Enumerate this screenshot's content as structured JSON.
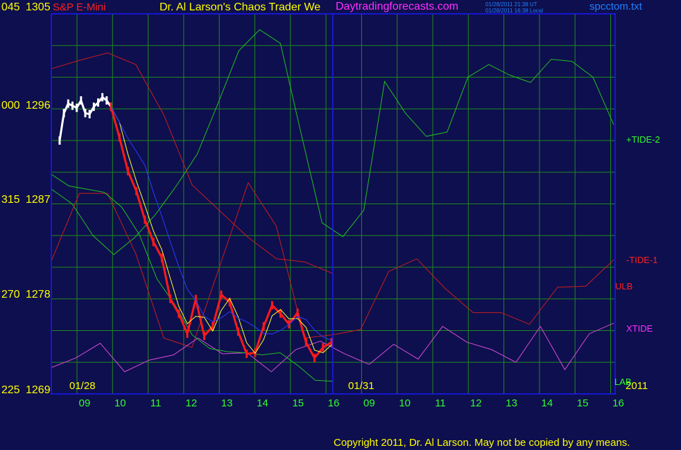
{
  "colors": {
    "background": "#0e0f4e",
    "frame": "#1a1aff",
    "grid": "#1f8a1f",
    "price_up": "#ffffff",
    "price_down": "#ff1a1a",
    "tide2": "#22c022",
    "tide1": "#c81e1e",
    "xtide": "#d84cd8",
    "ma_fast": "#ffff30",
    "ma_slow": "#2a3cff",
    "label_white": "#ffffff",
    "label_red": "#ff2020",
    "label_green": "#30ff30",
    "label_yellow": "#ffff00",
    "label_magenta": "#ff30ff",
    "label_blue": "#2080ff"
  },
  "header": {
    "scale_top_left": "045",
    "price_top": "1305",
    "instrument": "S&P E-Mini",
    "title": "Dr. Al Larson's Chaos Trader We",
    "site": "Daytradingforecasts.com",
    "stamp_ut": "01/28/2011 21:38 UT",
    "stamp_local": "01/28/2011 16:38 Local",
    "filename": "spcctom.txt"
  },
  "footer": {
    "copyright": "Copyright 2011, Dr. Al Larson. May not be copied by any means."
  },
  "chart_data": {
    "type": "line",
    "title": "S&P E-Mini",
    "ylim": [
      1269,
      1305
    ],
    "y_ticks": [
      {
        "value": 1305,
        "left": "045",
        "right": "1305"
      },
      {
        "value": 1296,
        "left": "000",
        "right": "1296"
      },
      {
        "value": 1287,
        "left": "315",
        "right": "1287"
      },
      {
        "value": 1278,
        "left": "270",
        "right": "1278"
      },
      {
        "value": 1269,
        "left": "225",
        "right": "1269"
      }
    ],
    "x_ticks": [
      "09",
      "10",
      "11",
      "12",
      "13",
      "14",
      "15",
      "16",
      "09",
      "10",
      "11",
      "12",
      "13",
      "14",
      "15",
      "16"
    ],
    "date_labels": [
      "01/28",
      "01/31",
      "2011"
    ],
    "series": [
      {
        "name": "+TIDE-2",
        "values": [
          1288.4,
          1287.0,
          1284.0,
          1282.2,
          1283.8,
          1286.0,
          1288.7,
          1291.7,
          1296.5,
          1301.5,
          1303.5,
          1302.2,
          1293.6,
          1285.2,
          1283.9,
          1286.4,
          1298.6,
          1295.6,
          1293.4,
          1293.8,
          1299.0,
          1300.2,
          1299.2,
          1298.5,
          1300.7,
          1300.5,
          1299.0,
          1294.5
        ]
      },
      {
        "name": "-TIDE-1",
        "values": [
          1281.6,
          1288.0,
          1288.0,
          1282.3,
          1274.3,
          1273.4,
          1281.2,
          1289.0,
          1284.9,
          1274.3,
          1274.6,
          1275.1,
          1280.6,
          1281.8,
          1279.0,
          1276.7,
          1276.7,
          1275.6,
          1279.1,
          1279.2,
          1281.7
        ]
      },
      {
        "name": "ULB",
        "values": [
          1299.8,
          1300.6,
          1301.3,
          1300.2,
          1295.4,
          1288.8,
          1286.3,
          1283.8,
          1281.8,
          1281.5,
          1280.4
        ]
      },
      {
        "name": "XTIDE",
        "values": [
          1271.5,
          1272.4,
          1273.8,
          1271.1,
          1272.2,
          1272.7,
          1274.3,
          1272.8,
          1272.9,
          1271.1,
          1273.2,
          1274.0,
          1272.8,
          1271.8,
          1273.7,
          1272.3,
          1275.4,
          1273.9,
          1273.2,
          1272.0,
          1275.4,
          1271.3,
          1274.7,
          1275.7
        ]
      },
      {
        "name": "LAB",
        "values": [
          1289.8,
          1288.7,
          1288.4,
          1288.1,
          1286.7,
          1284.1,
          1279.9,
          1277.5,
          1274.6,
          1273.3,
          1273.0,
          1272.9,
          1272.7,
          1272.9,
          1271.7,
          1270.3,
          1270.2
        ]
      }
    ],
    "price_bars": {
      "white_segment": [
        1293.0,
        1295.6,
        1296.5,
        1296.3,
        1296.1,
        1296.8,
        1295.6,
        1295.5,
        1296.2,
        1296.6,
        1297.1,
        1296.8,
        1296.2
      ],
      "red_segment": [
        1296.2,
        1293.3,
        1290.1,
        1288.2,
        1285.5,
        1283.4,
        1281.9,
        1278.0,
        1276.6,
        1274.7,
        1278.0,
        1274.5,
        1275.4,
        1278.4,
        1277.7,
        1274.9,
        1272.8,
        1272.9,
        1275.4,
        1277.4,
        1276.6,
        1275.6,
        1276.7,
        1273.9,
        1272.4,
        1273.4,
        1273.9
      ]
    }
  },
  "legend": {
    "tide2": "+TIDE-2",
    "tide1": "-TIDE-1",
    "ulb": "ULB",
    "xtide": "XTIDE",
    "lab": "LAB"
  }
}
